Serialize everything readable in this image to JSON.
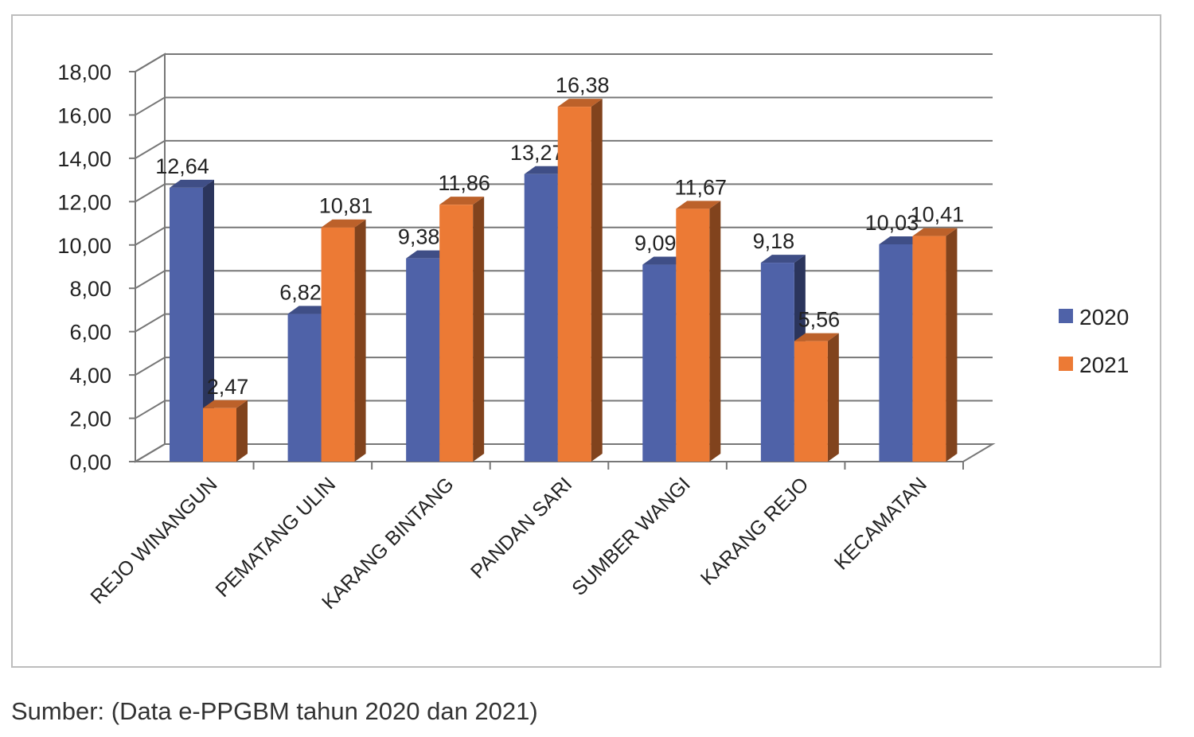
{
  "chart_data": {
    "type": "bar",
    "style": "3d-clustered-column",
    "categories": [
      "REJO WINANGUN",
      "PEMATANG ULIN",
      "KARANG BINTANG",
      "PANDAN SARI",
      "SUMBER WANGI",
      "KARANG REJO",
      "KECAMATAN"
    ],
    "series": [
      {
        "name": "2020",
        "color": "#4f62a8",
        "values": [
          12.64,
          6.82,
          9.38,
          13.27,
          9.09,
          9.18,
          10.03
        ],
        "labels": [
          "12,64",
          "6,82",
          "9,38",
          "13,27",
          "9,09",
          "9,18",
          "10,03"
        ]
      },
      {
        "name": "2021",
        "color": "#ec7a35",
        "values": [
          2.47,
          10.81,
          11.86,
          16.38,
          11.67,
          5.56,
          10.41
        ],
        "labels": [
          "2,47",
          "10,81",
          "11,86",
          "16,38",
          "11,67",
          "5,56",
          "10,41"
        ]
      }
    ],
    "ylim": [
      0,
      18
    ],
    "yticks": [
      "0,00",
      "2,00",
      "4,00",
      "6,00",
      "8,00",
      "10,00",
      "12,00",
      "14,00",
      "16,00",
      "18,00"
    ],
    "grid": true,
    "legend": "right"
  },
  "source": "Sumber: (Data e-PPGBM tahun 2020 dan 2021)"
}
